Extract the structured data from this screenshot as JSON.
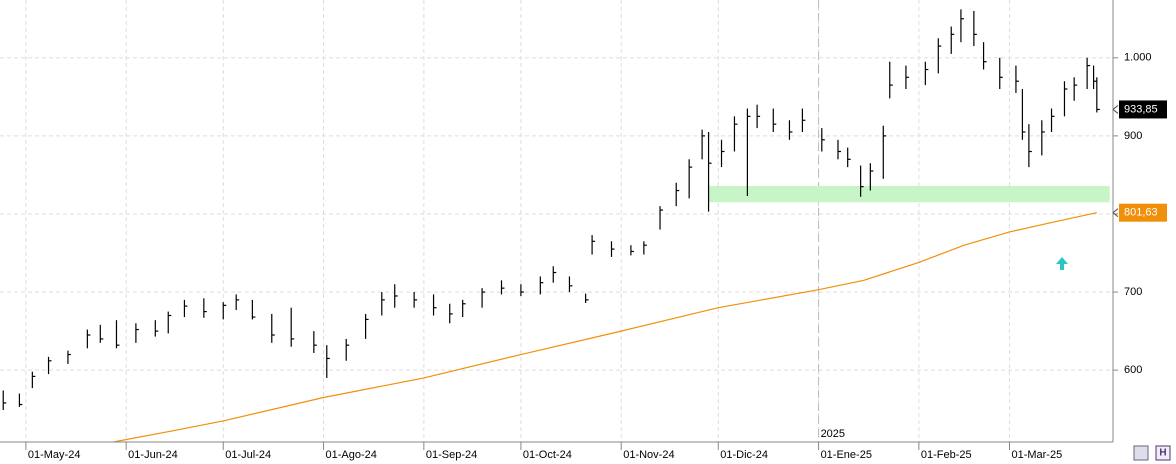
{
  "chart_data": {
    "type": "ohlc",
    "x": [
      "2024-04-24",
      "2024-04-29",
      "2024-05-03",
      "2024-05-08",
      "2024-05-14",
      "2024-05-20",
      "2024-05-24",
      "2024-05-29",
      "2024-06-04",
      "2024-06-10",
      "2024-06-14",
      "2024-06-19",
      "2024-06-25",
      "2024-07-01",
      "2024-07-05",
      "2024-07-10",
      "2024-07-16",
      "2024-07-22",
      "2024-07-29",
      "2024-08-02",
      "2024-08-08",
      "2024-08-14",
      "2024-08-19",
      "2024-08-23",
      "2024-08-29",
      "2024-09-04",
      "2024-09-09",
      "2024-09-13",
      "2024-09-19",
      "2024-09-25",
      "2024-10-01",
      "2024-10-07",
      "2024-10-11",
      "2024-10-16",
      "2024-10-21",
      "2024-10-23",
      "2024-10-29",
      "2024-11-04",
      "2024-11-08",
      "2024-11-13",
      "2024-11-18",
      "2024-11-22",
      "2024-11-26",
      "2024-11-28",
      "2024-12-02",
      "2024-12-06",
      "2024-12-10",
      "2024-12-13",
      "2024-12-18",
      "2024-12-23",
      "2024-12-27",
      "2025-01-02",
      "2025-01-07",
      "2025-01-10",
      "2025-01-14",
      "2025-01-17",
      "2025-01-21",
      "2025-01-23",
      "2025-01-28",
      "2025-02-03",
      "2025-02-07",
      "2025-02-11",
      "2025-02-14",
      "2025-02-18",
      "2025-02-21",
      "2025-02-26",
      "2025-03-03",
      "2025-03-05",
      "2025-03-07",
      "2025-03-11",
      "2025-03-14",
      "2025-03-18",
      "2025-03-21",
      "2025-03-25",
      "2025-03-27",
      "2025-03-28"
    ],
    "high": [
      574,
      570,
      598,
      617,
      625,
      652,
      658,
      664,
      660,
      664,
      675,
      690,
      692,
      687,
      697,
      690,
      672,
      680,
      650,
      632,
      640,
      672,
      700,
      710,
      700,
      697,
      685,
      690,
      705,
      715,
      710,
      720,
      733,
      720,
      698,
      773,
      765,
      760,
      765,
      810,
      840,
      870,
      908,
      905,
      895,
      925,
      935,
      940,
      935,
      920,
      935,
      910,
      895,
      885,
      862,
      865,
      913,
      995,
      990,
      995,
      1025,
      1040,
      1062,
      1060,
      1020,
      1000,
      990,
      960,
      915,
      920,
      935,
      970,
      975,
      1000,
      990,
      975
    ],
    "low": [
      549,
      553,
      577,
      595,
      608,
      628,
      635,
      628,
      635,
      643,
      647,
      668,
      667,
      665,
      677,
      665,
      635,
      630,
      622,
      590,
      612,
      640,
      670,
      680,
      680,
      670,
      660,
      668,
      680,
      697,
      695,
      697,
      712,
      700,
      686,
      748,
      745,
      747,
      748,
      780,
      810,
      820,
      870,
      803,
      860,
      880,
      823,
      910,
      905,
      895,
      905,
      880,
      870,
      860,
      822,
      830,
      845,
      948,
      960,
      965,
      980,
      1005,
      1020,
      1015,
      985,
      960,
      955,
      895,
      860,
      875,
      905,
      925,
      945,
      960,
      960,
      930
    ],
    "close": [
      558,
      556,
      592,
      612,
      620,
      645,
      640,
      632,
      652,
      650,
      670,
      682,
      675,
      683,
      690,
      668,
      645,
      640,
      632,
      615,
      632,
      665,
      690,
      695,
      690,
      680,
      672,
      685,
      700,
      705,
      700,
      712,
      725,
      708,
      690,
      765,
      755,
      752,
      760,
      805,
      830,
      860,
      900,
      865,
      880,
      915,
      925,
      925,
      915,
      905,
      920,
      895,
      880,
      870,
      835,
      855,
      900,
      965,
      975,
      985,
      1015,
      1030,
      1050,
      1030,
      995,
      975,
      970,
      905,
      880,
      905,
      925,
      960,
      965,
      990,
      970,
      933.85
    ],
    "color": "#000000",
    "last_label": "933,85",
    "ma": {
      "x": [
        "2024-05-28",
        "2024-06-15",
        "2024-07-01",
        "2024-08-01",
        "2024-09-01",
        "2024-10-01",
        "2024-11-01",
        "2024-12-01",
        "2025-01-01",
        "2025-01-15",
        "2025-02-01",
        "2025-02-15",
        "2025-03-01",
        "2025-03-15",
        "2025-03-28"
      ],
      "values": [
        508,
        522,
        535,
        565,
        590,
        620,
        650,
        680,
        703,
        715,
        738,
        760,
        777,
        790,
        801.63
      ],
      "color": "#f0900a",
      "last_label": "801,63"
    },
    "zone": {
      "x": [
        "2024-11-28",
        "2025-04-01"
      ],
      "y": [
        815,
        836
      ],
      "color": "#c8f5c8"
    },
    "year_marker": {
      "x": "2025-01-01",
      "label": "2025"
    },
    "xlim": [
      "2024-04-23",
      "2025-04-02"
    ],
    "xticks": [
      {
        "value": "2024-05-01",
        "label": "01-May-24"
      },
      {
        "value": "2024-06-01",
        "label": "01-Jun-24"
      },
      {
        "value": "2024-07-01",
        "label": "01-Jul-24"
      },
      {
        "value": "2024-08-01",
        "label": "01-Ago-24"
      },
      {
        "value": "2024-09-01",
        "label": "01-Sep-24"
      },
      {
        "value": "2024-10-01",
        "label": "01-Oct-24"
      },
      {
        "value": "2024-11-01",
        "label": "01-Nov-24"
      },
      {
        "value": "2024-12-01",
        "label": "01-Dic-24"
      },
      {
        "value": "2025-01-01",
        "label": "01-Ene-25"
      },
      {
        "value": "2025-02-01",
        "label": "01-Feb-25"
      },
      {
        "value": "2025-03-01",
        "label": "01-Mar-25"
      }
    ],
    "ylim": [
      508,
      1074
    ],
    "yticks": [
      600,
      700,
      800,
      900,
      {
        "value": 1000,
        "label": "1.000"
      }
    ],
    "grid": true
  }
}
